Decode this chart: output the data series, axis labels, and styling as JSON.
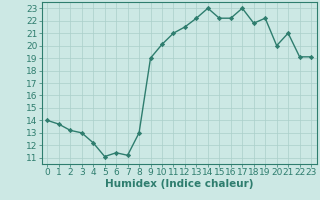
{
  "x": [
    0,
    1,
    2,
    3,
    4,
    5,
    6,
    7,
    8,
    9,
    10,
    11,
    12,
    13,
    14,
    15,
    16,
    17,
    18,
    19,
    20,
    21,
    22,
    23
  ],
  "y": [
    14,
    13.7,
    13.2,
    13.0,
    12.2,
    11.1,
    11.4,
    11.2,
    13.0,
    19.0,
    20.1,
    21.0,
    21.5,
    22.2,
    23.0,
    22.2,
    22.2,
    23.0,
    21.8,
    22.2,
    20.0,
    21.0,
    19.1,
    19.1
  ],
  "line_color": "#2e7d6e",
  "marker": "D",
  "marker_size": 2.2,
  "bg_color": "#cce8e4",
  "grid_color": "#aacfca",
  "xlabel": "Humidex (Indice chaleur)",
  "ylabel_ticks": [
    11,
    12,
    13,
    14,
    15,
    16,
    17,
    18,
    19,
    20,
    21,
    22,
    23
  ],
  "xlim": [
    -0.5,
    23.5
  ],
  "ylim": [
    10.5,
    23.5
  ],
  "tick_fontsize": 6.5,
  "xlabel_fontsize": 7.5,
  "linewidth": 1.0
}
